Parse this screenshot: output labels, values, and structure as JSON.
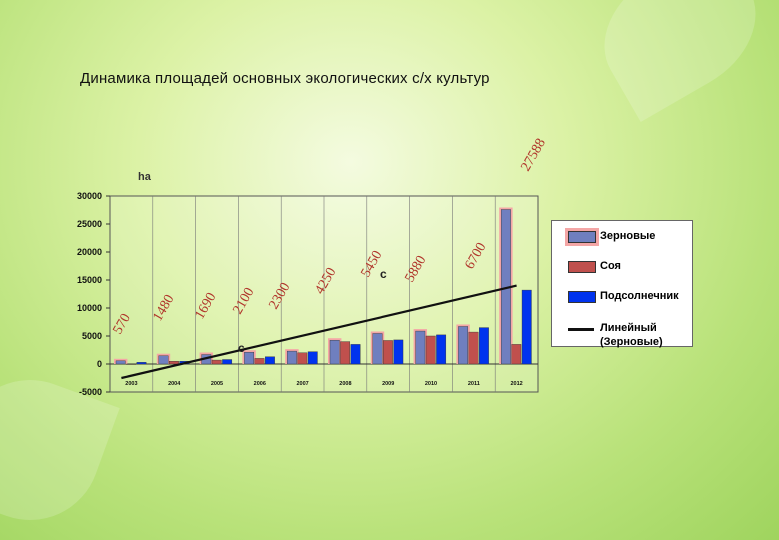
{
  "title": "Динамика площадей основных экологических с/х культур",
  "chart_data": {
    "type": "bar",
    "unit_label": "ha",
    "categories": [
      "2003",
      "2004",
      "2005",
      "2006",
      "2007",
      "2008",
      "2009",
      "2010",
      "2011",
      "2012"
    ],
    "series": [
      {
        "name": "Зерновые",
        "color": "#6f7fbf",
        "values": [
          570,
          1480,
          1690,
          2100,
          2300,
          4250,
          5450,
          5880,
          6700,
          27588
        ]
      },
      {
        "name": "Соя",
        "color": "#c0504d",
        "values": [
          0,
          500,
          700,
          1000,
          2000,
          4000,
          4200,
          5000,
          5700,
          3500
        ]
      },
      {
        "name": "Подсолнечник",
        "color": "#0033ee",
        "values": [
          300,
          500,
          800,
          1300,
          2200,
          3500,
          4300,
          5200,
          6500,
          13200
        ]
      }
    ],
    "trendline": {
      "name": "Линейный (Зерновые)",
      "start": -2500,
      "end": 14000
    },
    "value_labels": [
      "570",
      "1480",
      "1690",
      "2100",
      "2300",
      "4250",
      "5450",
      "5880",
      "6700",
      "27588"
    ],
    "annotations": [
      "c",
      "c"
    ],
    "yticks": [
      "30000",
      "25000",
      "20000",
      "15000",
      "10000",
      "5000",
      "0",
      "-5000"
    ],
    "ylim": [
      -5000,
      30000
    ],
    "grid": true,
    "legend_position": "right"
  }
}
